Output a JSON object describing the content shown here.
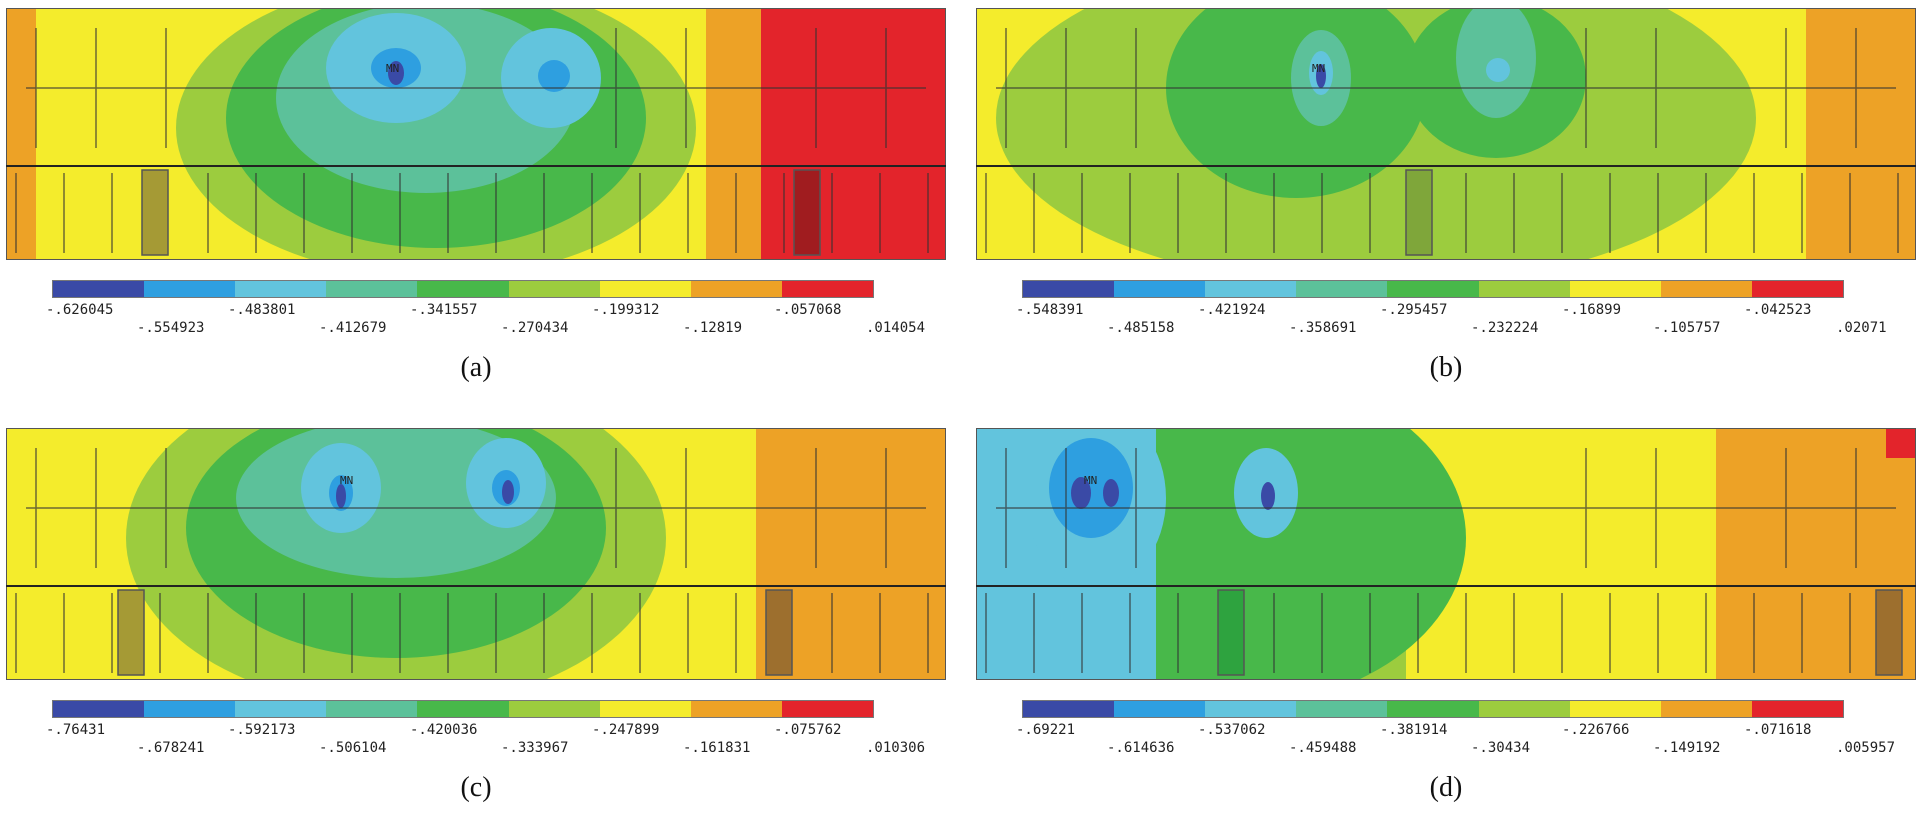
{
  "figure": {
    "legend_colors": [
      "#3a4aa6",
      "#2e9fe0",
      "#62c4dd",
      "#5cc19a",
      "#48b84a",
      "#9ccc3e",
      "#f4ec2c",
      "#eda226",
      "#e3242b"
    ],
    "min_marker": "MN",
    "panels": [
      {
        "caption": "(a)",
        "ticks": [
          "-.626045",
          "-.554923",
          "-.483801",
          "-.412679",
          "-.341557",
          "-.270434",
          "-.199312",
          "-.12819",
          "-.057068",
          ".014054"
        ]
      },
      {
        "caption": "(b)",
        "ticks": [
          "-.548391",
          "-.485158",
          "-.421924",
          "-.358691",
          "-.295457",
          "-.232224",
          "-.16899",
          "-.105757",
          "-.042523",
          ".02071"
        ]
      },
      {
        "caption": "(c)",
        "ticks": [
          "-.76431",
          "-.678241",
          "-.592173",
          "-.506104",
          "-.420036",
          "-.333967",
          "-.247899",
          "-.161831",
          "-.075762",
          ".010306"
        ]
      },
      {
        "caption": "(d)",
        "ticks": [
          "-.69221",
          "-.614636",
          "-.537062",
          "-.459488",
          "-.381914",
          "-.30434",
          "-.226766",
          "-.149192",
          "-.071618",
          ".005957"
        ]
      }
    ]
  }
}
